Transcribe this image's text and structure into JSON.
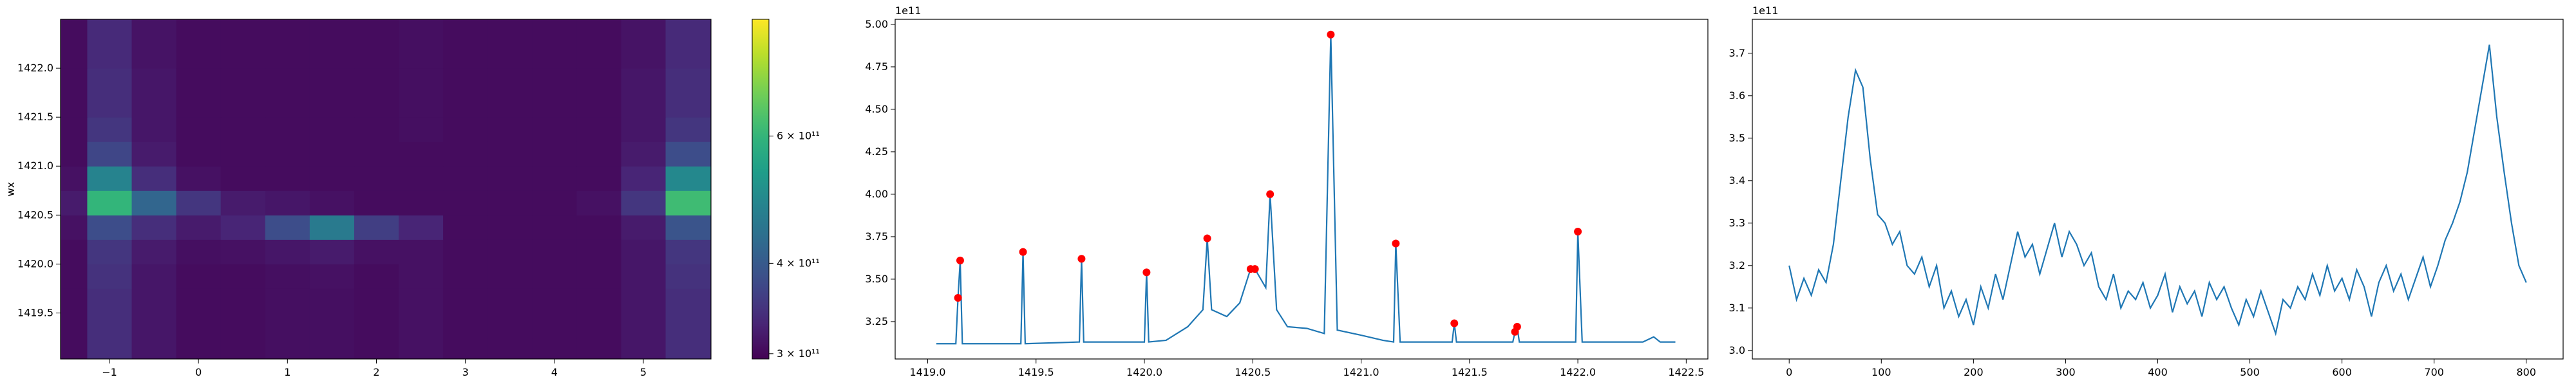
{
  "chart_data": [
    {
      "type": "heatmap",
      "ylabel": "wx",
      "colormap": "viridis",
      "zscale": "log",
      "xlim": [
        -1.55,
        5.76
      ],
      "ylim": [
        1419.03,
        1422.5
      ],
      "xticks": [
        {
          "value": -1,
          "label": "−1"
        },
        0,
        1,
        2,
        3,
        4,
        5
      ],
      "yticks": [
        1419.5,
        {
          "value": 1420.0,
          "label": "1420.0"
        },
        1420.5,
        {
          "value": 1421.0,
          "label": "1421.0"
        },
        1421.5,
        {
          "value": 1422.0,
          "label": "1422.0"
        }
      ],
      "x_edges": [
        -1.55,
        -1.25,
        -0.75,
        -0.25,
        0.25,
        0.75,
        1.25,
        1.75,
        2.25,
        2.75,
        3.25,
        3.75,
        4.25,
        4.75,
        5.25,
        5.76
      ],
      "y_edges": [
        1419.03,
        1419.25,
        1419.5,
        1419.75,
        1420.0,
        1420.25,
        1420.5,
        1420.75,
        1421.0,
        1421.25,
        1421.5,
        1422.0,
        1422.5
      ],
      "z": [
        [
          305000000000.0,
          340000000000.0,
          315000000000.0,
          305000000000.0,
          305000000000.0,
          308000000000.0,
          308000000000.0,
          305000000000.0,
          310000000000.0,
          305000000000.0,
          305000000000.0,
          305000000000.0,
          305000000000.0,
          315000000000.0,
          340000000000.0
        ],
        [
          305000000000.0,
          340000000000.0,
          315000000000.0,
          305000000000.0,
          305000000000.0,
          308000000000.0,
          308000000000.0,
          305000000000.0,
          310000000000.0,
          305000000000.0,
          305000000000.0,
          305000000000.0,
          305000000000.0,
          315000000000.0,
          340000000000.0
        ],
        [
          305000000000.0,
          340000000000.0,
          315000000000.0,
          305000000000.0,
          305000000000.0,
          308000000000.0,
          308000000000.0,
          305000000000.0,
          310000000000.0,
          305000000000.0,
          305000000000.0,
          305000000000.0,
          305000000000.0,
          315000000000.0,
          340000000000.0
        ],
        [
          305000000000.0,
          345000000000.0,
          315000000000.0,
          305000000000.0,
          305000000000.0,
          308000000000.0,
          310000000000.0,
          305000000000.0,
          310000000000.0,
          305000000000.0,
          305000000000.0,
          305000000000.0,
          305000000000.0,
          315000000000.0,
          345000000000.0
        ],
        [
          305000000000.0,
          350000000000.0,
          320000000000.0,
          308000000000.0,
          310000000000.0,
          315000000000.0,
          320000000000.0,
          310000000000.0,
          310000000000.0,
          305000000000.0,
          305000000000.0,
          305000000000.0,
          305000000000.0,
          315000000000.0,
          350000000000.0
        ],
        [
          310000000000.0,
          380000000000.0,
          340000000000.0,
          320000000000.0,
          330000000000.0,
          380000000000.0,
          460000000000.0,
          360000000000.0,
          330000000000.0,
          305000000000.0,
          305000000000.0,
          305000000000.0,
          305000000000.0,
          320000000000.0,
          390000000000.0
        ],
        [
          320000000000.0,
          600000000000.0,
          420000000000.0,
          350000000000.0,
          320000000000.0,
          315000000000.0,
          310000000000.0,
          305000000000.0,
          305000000000.0,
          305000000000.0,
          305000000000.0,
          305000000000.0,
          310000000000.0,
          350000000000.0,
          620000000000.0
        ],
        [
          310000000000.0,
          480000000000.0,
          340000000000.0,
          310000000000.0,
          305000000000.0,
          305000000000.0,
          305000000000.0,
          305000000000.0,
          305000000000.0,
          305000000000.0,
          305000000000.0,
          305000000000.0,
          305000000000.0,
          330000000000.0,
          490000000000.0
        ],
        [
          305000000000.0,
          370000000000.0,
          320000000000.0,
          305000000000.0,
          305000000000.0,
          305000000000.0,
          305000000000.0,
          305000000000.0,
          305000000000.0,
          305000000000.0,
          305000000000.0,
          305000000000.0,
          305000000000.0,
          320000000000.0,
          380000000000.0
        ],
        [
          305000000000.0,
          350000000000.0,
          315000000000.0,
          305000000000.0,
          305000000000.0,
          305000000000.0,
          305000000000.0,
          305000000000.0,
          308000000000.0,
          305000000000.0,
          305000000000.0,
          305000000000.0,
          305000000000.0,
          315000000000.0,
          350000000000.0
        ],
        [
          305000000000.0,
          340000000000.0,
          315000000000.0,
          305000000000.0,
          305000000000.0,
          305000000000.0,
          305000000000.0,
          305000000000.0,
          308000000000.0,
          305000000000.0,
          305000000000.0,
          305000000000.0,
          305000000000.0,
          315000000000.0,
          340000000000.0
        ],
        [
          305000000000.0,
          335000000000.0,
          312000000000.0,
          305000000000.0,
          305000000000.0,
          305000000000.0,
          305000000000.0,
          305000000000.0,
          308000000000.0,
          305000000000.0,
          305000000000.0,
          305000000000.0,
          305000000000.0,
          312000000000.0,
          335000000000.0
        ]
      ],
      "zlim": [
        295000000000.0,
        870000000000.0
      ],
      "zticks": [
        {
          "value": 300000000000.0,
          "label": "3 × 10¹¹"
        },
        {
          "value": 400000000000.0,
          "label": "4 × 10¹¹"
        },
        {
          "value": 600000000000.0,
          "label": "6 × 10¹¹"
        }
      ]
    },
    {
      "type": "line",
      "y_offset_label": "1e11",
      "color": "#1f77b4",
      "xlim": [
        1418.85,
        1422.6
      ],
      "ylim": [
        3.03,
        5.03
      ],
      "xticks": [
        {
          "value": 1419.0,
          "label": "1419.0"
        },
        1419.5,
        {
          "value": 1420.0,
          "label": "1420.0"
        },
        1420.5,
        {
          "value": 1421.0,
          "label": "1421.0"
        },
        1421.5,
        {
          "value": 1422.0,
          "label": "1422.0"
        },
        1422.5
      ],
      "yticks": [
        3.25,
        {
          "value": 3.5,
          "label": "3.50"
        },
        3.75,
        {
          "value": 4.0,
          "label": "4.00"
        },
        4.25,
        {
          "value": 4.5,
          "label": "4.50"
        },
        4.75,
        {
          "value": 5.0,
          "label": "5.00"
        }
      ],
      "x": [
        1419.04,
        1419.13,
        1419.14,
        1419.15,
        1419.16,
        1419.43,
        1419.44,
        1419.45,
        1419.7,
        1419.71,
        1419.72,
        1420.0,
        1420.01,
        1420.02,
        1420.1,
        1420.2,
        1420.27,
        1420.29,
        1420.31,
        1420.38,
        1420.44,
        1420.49,
        1420.51,
        1420.56,
        1420.58,
        1420.61,
        1420.66,
        1420.75,
        1420.83,
        1420.86,
        1420.89,
        1421.0,
        1421.1,
        1421.15,
        1421.16,
        1421.18,
        1421.42,
        1421.43,
        1421.44,
        1421.7,
        1421.71,
        1421.72,
        1421.73,
        1421.99,
        1422.0,
        1422.02,
        1422.3,
        1422.35,
        1422.38,
        1422.45
      ],
      "values": [
        3.12,
        3.12,
        3.39,
        3.61,
        3.12,
        3.12,
        3.66,
        3.12,
        3.13,
        3.62,
        3.13,
        3.13,
        3.54,
        3.13,
        3.14,
        3.22,
        3.32,
        3.74,
        3.32,
        3.28,
        3.36,
        3.56,
        3.56,
        3.45,
        4.0,
        3.32,
        3.22,
        3.21,
        3.18,
        4.94,
        3.2,
        3.17,
        3.14,
        3.13,
        3.71,
        3.13,
        3.13,
        3.24,
        3.13,
        3.13,
        3.19,
        3.22,
        3.13,
        3.13,
        3.78,
        3.13,
        3.13,
        3.16,
        3.13,
        3.13
      ],
      "peaks": {
        "color": "#ff0000",
        "x": [
          1419.14,
          1419.15,
          1419.44,
          1419.71,
          1420.01,
          1420.29,
          1420.49,
          1420.51,
          1420.58,
          1420.86,
          1421.16,
          1421.43,
          1421.71,
          1421.72,
          1422.0
        ],
        "values": [
          3.39,
          3.61,
          3.66,
          3.62,
          3.54,
          3.74,
          3.56,
          3.56,
          4.0,
          4.94,
          3.71,
          3.24,
          3.19,
          3.22,
          3.78
        ]
      }
    },
    {
      "type": "line",
      "y_offset_label": "1e11",
      "color": "#1f77b4",
      "xlim": [
        -40,
        840
      ],
      "ylim": [
        2.98,
        3.78
      ],
      "xticks": [
        0,
        100,
        200,
        300,
        400,
        500,
        600,
        700,
        800
      ],
      "yticks": [
        {
          "value": 3.0,
          "label": "3.0"
        },
        3.1,
        3.2,
        3.3,
        3.4,
        3.5,
        3.6,
        3.7
      ],
      "x": [
        0,
        8,
        16,
        24,
        32,
        40,
        48,
        56,
        64,
        72,
        80,
        88,
        96,
        104,
        112,
        120,
        128,
        136,
        144,
        152,
        160,
        168,
        176,
        184,
        192,
        200,
        208,
        216,
        224,
        232,
        240,
        248,
        256,
        264,
        272,
        280,
        288,
        296,
        304,
        312,
        320,
        328,
        336,
        344,
        352,
        360,
        368,
        376,
        384,
        392,
        400,
        408,
        416,
        424,
        432,
        440,
        448,
        456,
        464,
        472,
        480,
        488,
        496,
        504,
        512,
        520,
        528,
        536,
        544,
        552,
        560,
        568,
        576,
        584,
        592,
        600,
        608,
        616,
        624,
        632,
        640,
        648,
        656,
        664,
        672,
        680,
        688,
        696,
        704,
        712,
        720,
        728,
        736,
        744,
        752,
        760,
        768,
        776,
        784,
        792,
        800
      ],
      "values": [
        3.2,
        3.12,
        3.17,
        3.13,
        3.19,
        3.16,
        3.25,
        3.4,
        3.55,
        3.66,
        3.62,
        3.45,
        3.32,
        3.3,
        3.25,
        3.28,
        3.2,
        3.18,
        3.22,
        3.15,
        3.2,
        3.1,
        3.14,
        3.08,
        3.12,
        3.06,
        3.15,
        3.1,
        3.18,
        3.12,
        3.2,
        3.28,
        3.22,
        3.25,
        3.18,
        3.24,
        3.3,
        3.22,
        3.28,
        3.25,
        3.2,
        3.23,
        3.15,
        3.12,
        3.18,
        3.1,
        3.14,
        3.12,
        3.16,
        3.1,
        3.13,
        3.18,
        3.09,
        3.15,
        3.11,
        3.14,
        3.08,
        3.16,
        3.12,
        3.15,
        3.1,
        3.06,
        3.12,
        3.08,
        3.14,
        3.09,
        3.04,
        3.12,
        3.1,
        3.15,
        3.12,
        3.18,
        3.13,
        3.2,
        3.14,
        3.17,
        3.12,
        3.19,
        3.15,
        3.08,
        3.16,
        3.2,
        3.14,
        3.18,
        3.12,
        3.17,
        3.22,
        3.15,
        3.2,
        3.26,
        3.3,
        3.35,
        3.42,
        3.52,
        3.62,
        3.72,
        3.55,
        3.42,
        3.3,
        3.2,
        3.16
      ]
    }
  ]
}
